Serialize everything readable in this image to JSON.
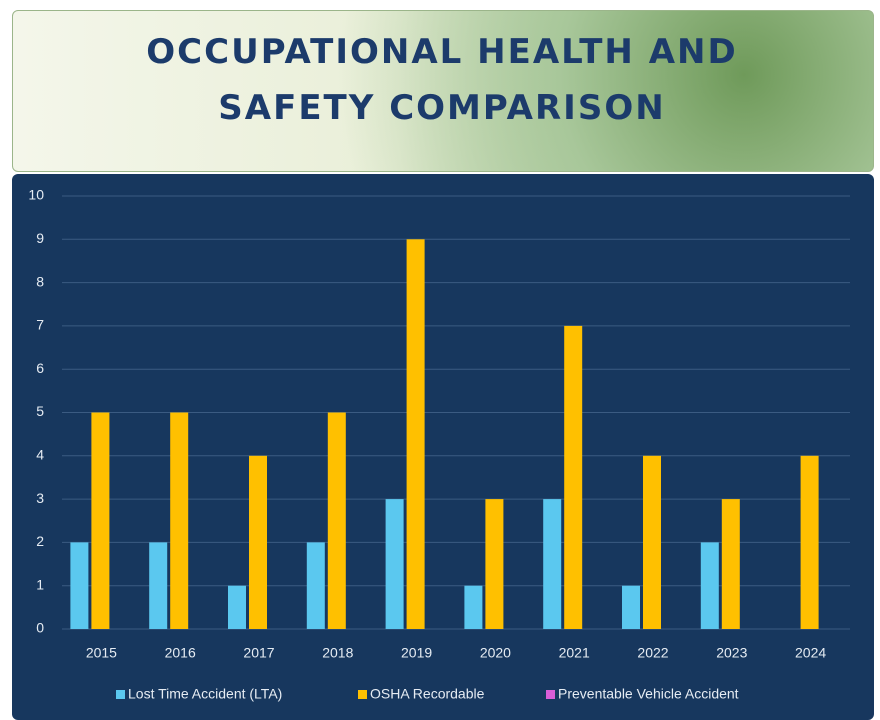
{
  "chart_data": {
    "type": "bar",
    "title": "OCCUPATIONAL HEALTH AND SAFETY COMPARISON",
    "categories": [
      "2015",
      "2016",
      "2017",
      "2018",
      "2019",
      "2020",
      "2021",
      "2022",
      "2023",
      "2024"
    ],
    "series": [
      {
        "name": "Lost Time Accident (LTA)",
        "color": "#5bc8ef",
        "values": [
          2,
          2,
          1,
          2,
          3,
          1,
          3,
          1,
          2,
          0
        ]
      },
      {
        "name": "OSHA Recordable",
        "color": "#ffc000",
        "values": [
          5,
          5,
          4,
          5,
          9,
          3,
          7,
          4,
          3,
          4
        ]
      },
      {
        "name": "Preventable Vehicle Accident",
        "color": "#d95ed8",
        "values": [
          0,
          0,
          0,
          0,
          0,
          0,
          0,
          0,
          0,
          0
        ]
      }
    ],
    "ylim": [
      0,
      10
    ],
    "yticks": [
      0,
      1,
      2,
      3,
      4,
      5,
      6,
      7,
      8,
      9,
      10
    ],
    "grid": true,
    "legend": "bottom"
  }
}
